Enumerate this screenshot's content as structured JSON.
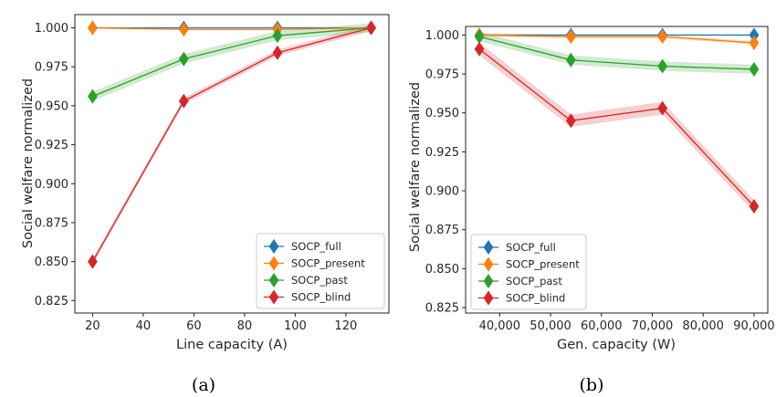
{
  "chart_data": [
    {
      "type": "line",
      "caption": "(a)",
      "xlabel": "Line capacity (A)",
      "ylabel": "Social welfare normalized",
      "xlim": [
        13,
        137
      ],
      "ylim": [
        0.817,
        1.0085
      ],
      "xticks": [
        20,
        40,
        60,
        80,
        100,
        120
      ],
      "xtick_labels": [
        "20",
        "40",
        "60",
        "80",
        "100",
        "120"
      ],
      "yticks": [
        0.825,
        0.85,
        0.875,
        0.9,
        0.925,
        0.95,
        0.975,
        1.0
      ],
      "ytick_labels": [
        "0.825",
        "0.850",
        "0.875",
        "0.900",
        "0.925",
        "0.950",
        "0.975",
        "1.000"
      ],
      "x": [
        20,
        56,
        93,
        130
      ],
      "series": [
        {
          "name": "SOCP_full",
          "color": "#1f77b4",
          "values": [
            1.0,
            1.0,
            1.0,
            1.0
          ],
          "band": 0.0003
        },
        {
          "name": "SOCP_present",
          "color": "#ff7f0e",
          "values": [
            1.0,
            0.999,
            0.999,
            1.0
          ],
          "band": 0.0005
        },
        {
          "name": "SOCP_past",
          "color": "#2ca02c",
          "values": [
            0.956,
            0.98,
            0.995,
            1.0
          ],
          "band": 0.003
        },
        {
          "name": "SOCP_blind",
          "color": "#d62728",
          "values": [
            0.85,
            0.953,
            0.984,
            1.0
          ],
          "band": 0.002
        }
      ],
      "legend": "lower-right",
      "grid": false
    },
    {
      "type": "line",
      "caption": "(b)",
      "xlabel": "Gen. capacity (W)",
      "ylabel": "Social welfare normalized",
      "xlim": [
        33300,
        92700
      ],
      "ylim": [
        0.8215,
        1.0055
      ],
      "xticks": [
        40000,
        50000,
        60000,
        70000,
        80000,
        90000
      ],
      "xtick_labels": [
        "40,000",
        "50,000",
        "60,000",
        "70,000",
        "80,000",
        "90,000"
      ],
      "yticks": [
        0.825,
        0.85,
        0.875,
        0.9,
        0.925,
        0.95,
        0.975,
        1.0
      ],
      "ytick_labels": [
        "0.825",
        "0.850",
        "0.875",
        "0.900",
        "0.925",
        "0.950",
        "0.975",
        "1.000"
      ],
      "x": [
        36000,
        54000,
        72000,
        90000
      ],
      "series": [
        {
          "name": "SOCP_full",
          "color": "#1f77b4",
          "values": [
            1.0,
            1.0,
            1.0,
            1.0
          ],
          "band": 0.0004
        },
        {
          "name": "SOCP_present",
          "color": "#ff7f0e",
          "values": [
            1.0,
            0.999,
            0.999,
            0.995
          ],
          "band": 0.0012
        },
        {
          "name": "SOCP_past",
          "color": "#2ca02c",
          "values": [
            0.999,
            0.984,
            0.98,
            0.978
          ],
          "band": 0.003
        },
        {
          "name": "SOCP_blind",
          "color": "#d62728",
          "values": [
            0.991,
            0.945,
            0.953,
            0.89
          ],
          "band": 0.004
        }
      ],
      "legend": "lower-left",
      "grid": false
    }
  ]
}
